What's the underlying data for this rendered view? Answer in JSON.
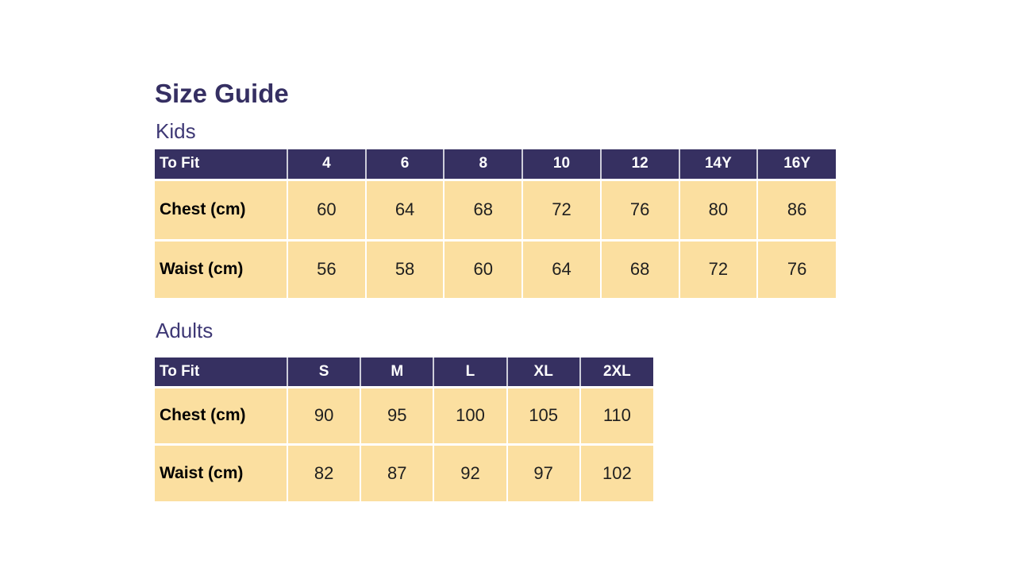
{
  "page": {
    "title": "Size Guide"
  },
  "colors": {
    "header_bg": "#363061",
    "row_bg": "#FBDFA0",
    "title_text": "#352F62",
    "section_label_text": "#3E3875",
    "header_text": "#FFFFFF",
    "body_text": "#1F1F1F"
  },
  "sections": [
    {
      "label": "Kids",
      "table": {
        "header": [
          "To Fit",
          "4",
          "6",
          "8",
          "10",
          "12",
          "14Y",
          "16Y"
        ],
        "rows": [
          {
            "label": "Chest (cm)",
            "values": [
              "60",
              "64",
              "68",
              "72",
              "76",
              "80",
              "86"
            ]
          },
          {
            "label": "Waist (cm)",
            "values": [
              "56",
              "58",
              "60",
              "64",
              "68",
              "72",
              "76"
            ]
          }
        ]
      }
    },
    {
      "label": "Adults",
      "table": {
        "header": [
          "To Fit",
          "S",
          "M",
          "L",
          "XL",
          "2XL"
        ],
        "rows": [
          {
            "label": "Chest (cm)",
            "values": [
              "90",
              "95",
              "100",
              "105",
              "110"
            ]
          },
          {
            "label": "Waist (cm)",
            "values": [
              "82",
              "87",
              "92",
              "97",
              "102"
            ]
          }
        ]
      }
    }
  ]
}
